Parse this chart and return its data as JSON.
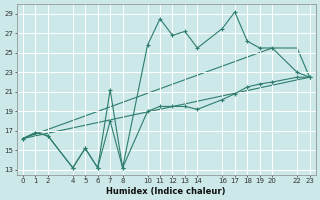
{
  "xlabel": "Humidex (Indice chaleur)",
  "bg_color": "#cce8e8",
  "grid_color": "#b0d4d4",
  "line_color": "#2e7d6e",
  "xlim": [
    -0.5,
    23.5
  ],
  "ylim": [
    12.5,
    30
  ],
  "xticks": [
    0,
    1,
    2,
    4,
    5,
    6,
    7,
    8,
    10,
    11,
    12,
    13,
    14,
    16,
    17,
    18,
    19,
    20,
    22,
    23
  ],
  "yticks": [
    13,
    15,
    17,
    19,
    21,
    23,
    25,
    27,
    29
  ],
  "line1_x": [
    0,
    1,
    2,
    4,
    5,
    6,
    7,
    8,
    10,
    11,
    12,
    13,
    14,
    16,
    17,
    18,
    19,
    20,
    22,
    23
  ],
  "line1_y": [
    16.2,
    16.8,
    16.5,
    13.2,
    15.2,
    13.2,
    21.2,
    13.2,
    25.8,
    28.5,
    26.8,
    27.2,
    25.5,
    27.5,
    29.2,
    26.2,
    25.5,
    25.5,
    23.0,
    22.5
  ],
  "line2_x": [
    0,
    1,
    2,
    4,
    5,
    6,
    7,
    8,
    10,
    11,
    12,
    13,
    14,
    16,
    17,
    18,
    19,
    20,
    22,
    23
  ],
  "line2_y": [
    16.2,
    16.8,
    16.5,
    13.2,
    15.2,
    13.2,
    18.0,
    13.2,
    19.0,
    19.5,
    19.5,
    19.5,
    19.2,
    20.2,
    20.8,
    21.5,
    21.8,
    22.0,
    22.5,
    22.5
  ],
  "line3_x": [
    0,
    20,
    22,
    23
  ],
  "line3_y": [
    16.2,
    25.5,
    25.5,
    22.5
  ],
  "line4_x": [
    0,
    23
  ],
  "line4_y": [
    16.2,
    22.5
  ]
}
